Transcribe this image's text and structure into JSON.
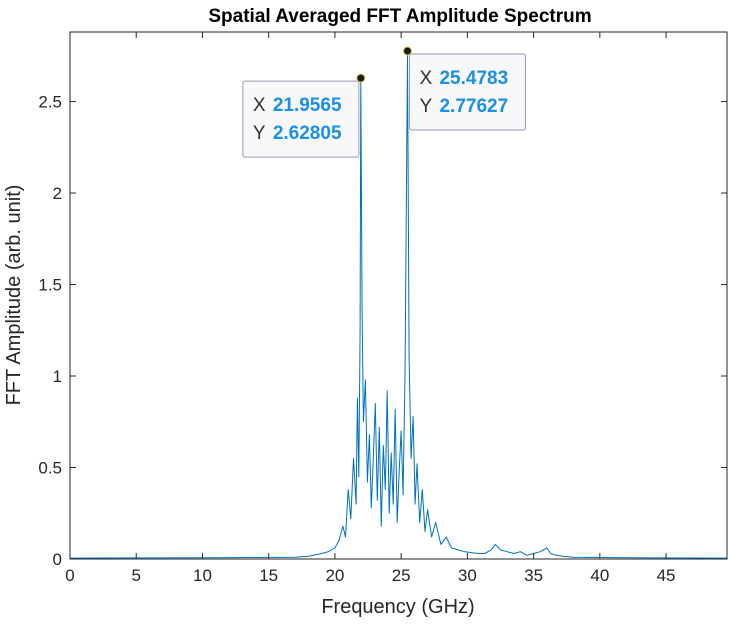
{
  "chart_data": {
    "type": "line",
    "title": "Spatial Averaged FFT Amplitude Spectrum",
    "xlabel": "Frequency (GHz)",
    "ylabel": "FFT Amplitude (arb. unit)",
    "xlim": [
      0,
      49.6
    ],
    "ylim": [
      0,
      2.88
    ],
    "xticks": [
      0,
      5,
      10,
      15,
      20,
      25,
      30,
      35,
      40,
      45
    ],
    "yticks": [
      0,
      0.5,
      1,
      1.5,
      2,
      2.5
    ],
    "xtick_labels": [
      "0",
      "5",
      "10",
      "15",
      "20",
      "25",
      "30",
      "35",
      "40",
      "45"
    ],
    "ytick_labels": [
      "0",
      "0.5",
      "1",
      "1.5",
      "2",
      "2.5"
    ],
    "grid": false,
    "series": [
      {
        "color": "#0072bd",
        "x": [
          0,
          5,
          10,
          14,
          17,
          18,
          19,
          19.5,
          20,
          20.3,
          20.6,
          20.8,
          21,
          21.2,
          21.4,
          21.6,
          21.7,
          21.8,
          21.9,
          21.9565,
          22.05,
          22.15,
          22.3,
          22.45,
          22.6,
          22.75,
          22.9,
          23.05,
          23.2,
          23.35,
          23.5,
          23.65,
          23.8,
          23.95,
          24.1,
          24.25,
          24.4,
          24.55,
          24.7,
          24.85,
          25.0,
          25.15,
          25.3,
          25.4783,
          25.6,
          25.75,
          25.9,
          26.05,
          26.2,
          26.4,
          26.6,
          26.8,
          27.0,
          27.3,
          27.6,
          28.0,
          28.4,
          28.8,
          29.3,
          29.8,
          30.3,
          30.8,
          31.3,
          31.8,
          32.1,
          32.5,
          33.0,
          33.5,
          34.0,
          34.5,
          35.0,
          35.5,
          36.0,
          36.3,
          36.7,
          37.2,
          38,
          40,
          45,
          49.6
        ],
        "y": [
          0.005,
          0.006,
          0.007,
          0.008,
          0.01,
          0.015,
          0.03,
          0.04,
          0.06,
          0.1,
          0.18,
          0.12,
          0.38,
          0.22,
          0.55,
          0.3,
          0.88,
          0.45,
          1.25,
          2.62805,
          1.35,
          0.75,
          0.98,
          0.42,
          0.68,
          0.28,
          0.55,
          0.85,
          0.32,
          0.72,
          0.18,
          0.62,
          0.38,
          0.92,
          0.25,
          0.58,
          0.3,
          0.82,
          0.2,
          0.48,
          0.7,
          0.35,
          1.05,
          2.77627,
          1.1,
          0.55,
          0.78,
          0.3,
          0.52,
          0.2,
          0.38,
          0.15,
          0.27,
          0.12,
          0.2,
          0.08,
          0.12,
          0.06,
          0.05,
          0.04,
          0.035,
          0.03,
          0.03,
          0.05,
          0.08,
          0.05,
          0.04,
          0.03,
          0.04,
          0.02,
          0.03,
          0.04,
          0.06,
          0.03,
          0.02,
          0.015,
          0.01,
          0.008,
          0.006,
          0.005
        ]
      }
    ],
    "datatips": [
      {
        "x_key": "X",
        "x_val": "21.9565",
        "y_key": "Y",
        "y_val": "2.62805",
        "x": 21.9565,
        "y": 2.62805,
        "side": "left"
      },
      {
        "x_key": "X",
        "x_val": "25.4783",
        "y_key": "Y",
        "y_val": "2.77627",
        "x": 25.4783,
        "y": 2.77627,
        "side": "right"
      }
    ]
  }
}
